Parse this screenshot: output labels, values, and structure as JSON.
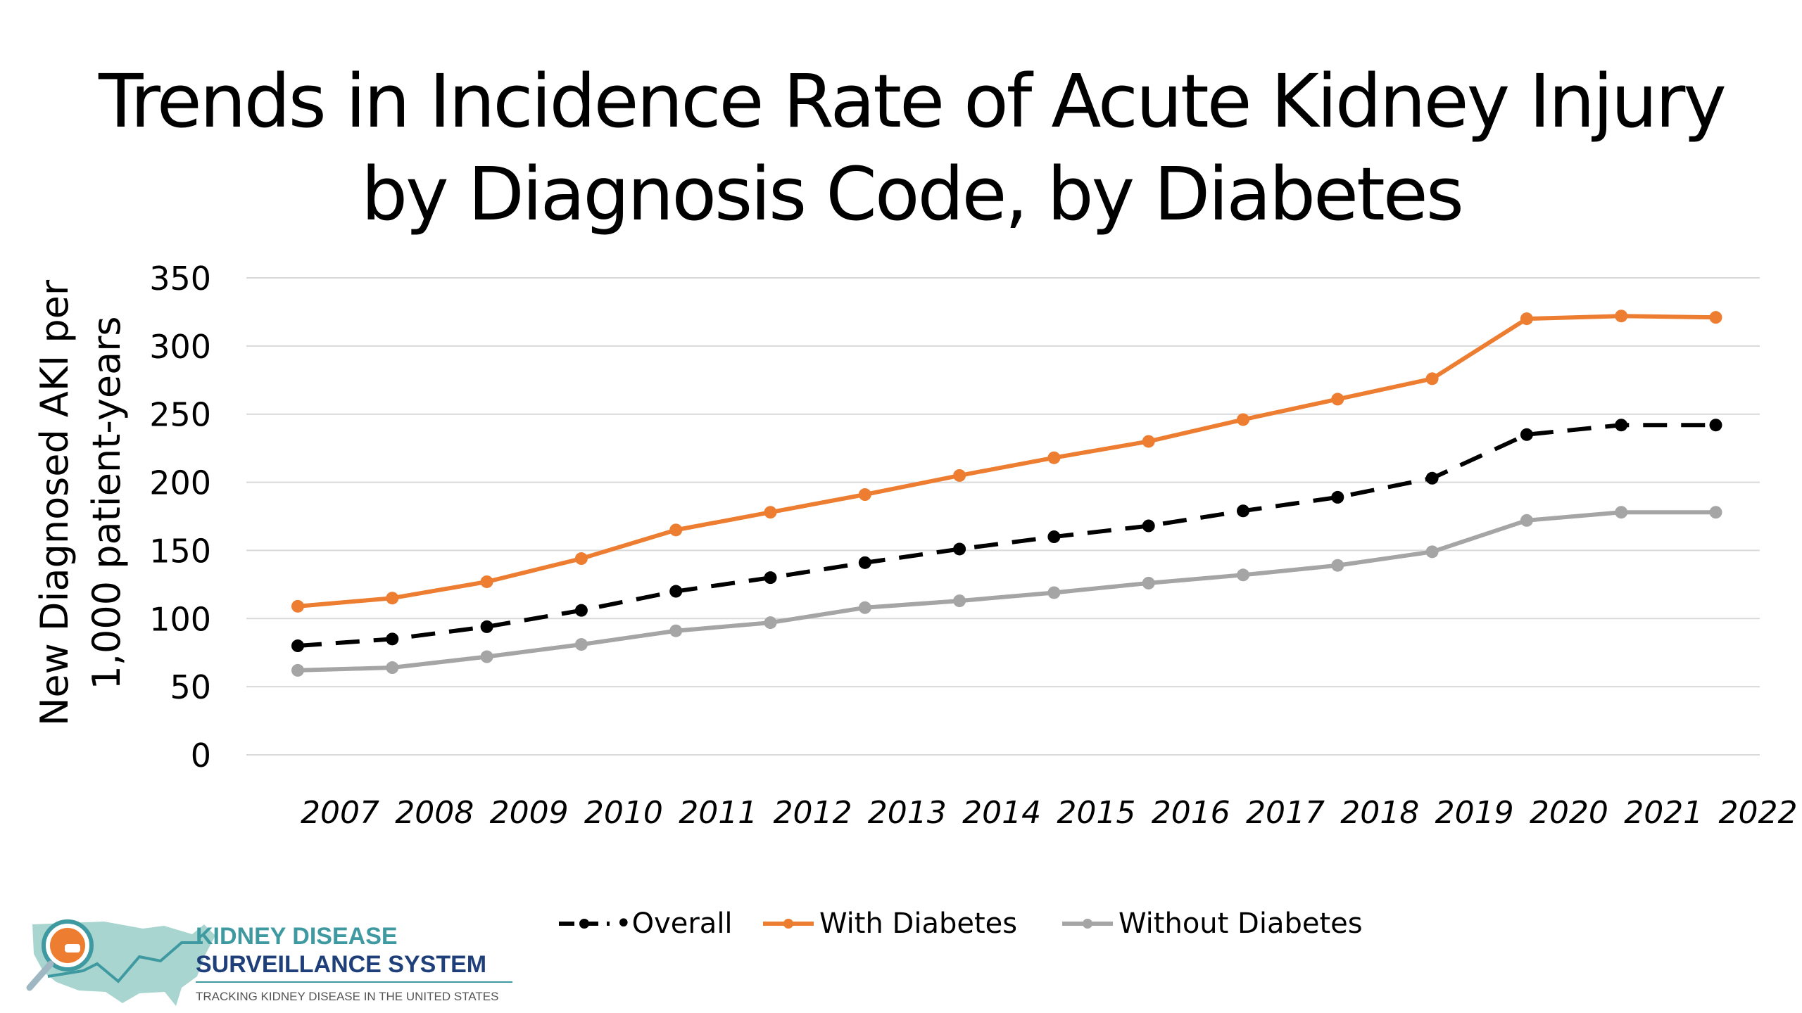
{
  "chart_data": {
    "type": "line",
    "title_lines": [
      "Trends in Incidence Rate of Acute Kidney Injury",
      "by Diagnosis Code, by Diabetes"
    ],
    "ylabel_lines": [
      "New Diagnosed AKI per",
      "1,000 patient-years"
    ],
    "xlabel": "",
    "x_tick_labels": [
      "2007",
      "2008",
      "2009",
      "2010",
      "2011",
      "2012",
      "2013",
      "2014",
      "2015",
      "2016",
      "2017",
      "2018",
      "2019",
      "2020",
      "2021",
      "2022"
    ],
    "y_ticks": [
      0,
      50,
      100,
      150,
      200,
      250,
      300,
      350
    ],
    "ylim": [
      0,
      350
    ],
    "grid": true,
    "legend_position": "bottom",
    "series": [
      {
        "name": "Overall",
        "legend_label": "•Overall",
        "color": "#000000",
        "dashed": true,
        "values": [
          80,
          85,
          94,
          106,
          120,
          130,
          141,
          151,
          160,
          168,
          179,
          189,
          203,
          235,
          242,
          242
        ]
      },
      {
        "name": "With Diabetes",
        "legend_label": "With Diabetes",
        "color": "#ED7D31",
        "dashed": false,
        "values": [
          109,
          115,
          127,
          144,
          165,
          178,
          191,
          205,
          218,
          230,
          246,
          261,
          276,
          320,
          322,
          321
        ]
      },
      {
        "name": "Without Diabetes",
        "legend_label": "Without Diabetes",
        "color": "#A5A5A5",
        "dashed": false,
        "values": [
          62,
          64,
          72,
          81,
          91,
          97,
          108,
          113,
          119,
          126,
          132,
          139,
          149,
          172,
          178,
          178
        ]
      }
    ]
  },
  "logo": {
    "line1": "KIDNEY DISEASE",
    "line2": "SURVEILLANCE SYSTEM",
    "tagline": "TRACKING KIDNEY DISEASE IN THE UNITED STATES",
    "colors": {
      "orange": "#ED7D31",
      "teal": "#3E9AA0",
      "map": "#A8D5CF",
      "navy": "#1F3F7A"
    }
  }
}
